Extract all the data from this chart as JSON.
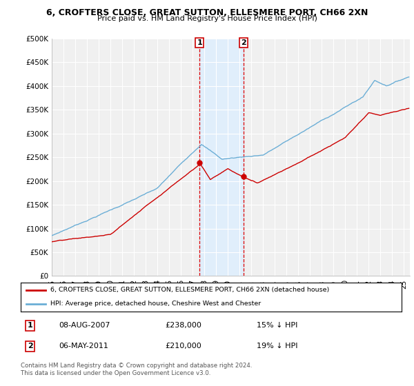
{
  "title": "6, CROFTERS CLOSE, GREAT SUTTON, ELLESMERE PORT, CH66 2XN",
  "subtitle": "Price paid vs. HM Land Registry's House Price Index (HPI)",
  "ytick_values": [
    0,
    50000,
    100000,
    150000,
    200000,
    250000,
    300000,
    350000,
    400000,
    450000,
    500000
  ],
  "ylim": [
    0,
    500000
  ],
  "hpi_color": "#6baed6",
  "price_color": "#cc0000",
  "sale1_date": "08-AUG-2007",
  "sale1_price": 238000,
  "sale1_pct": "15% ↓ HPI",
  "sale2_date": "06-MAY-2011",
  "sale2_price": 210000,
  "sale2_pct": "19% ↓ HPI",
  "legend_house": "6, CROFTERS CLOSE, GREAT SUTTON, ELLESMERE PORT, CH66 2XN (detached house)",
  "legend_hpi": "HPI: Average price, detached house, Cheshire West and Chester",
  "footnote": "Contains HM Land Registry data © Crown copyright and database right 2024.\nThis data is licensed under the Open Government Licence v3.0.",
  "background_color": "#ffffff",
  "plot_bg_color": "#f0f0f0",
  "grid_color": "#ffffff",
  "shade_color": "#ddeeff",
  "vline_color": "#dd0000",
  "x_start_year": 1995,
  "x_end_year": 2025
}
